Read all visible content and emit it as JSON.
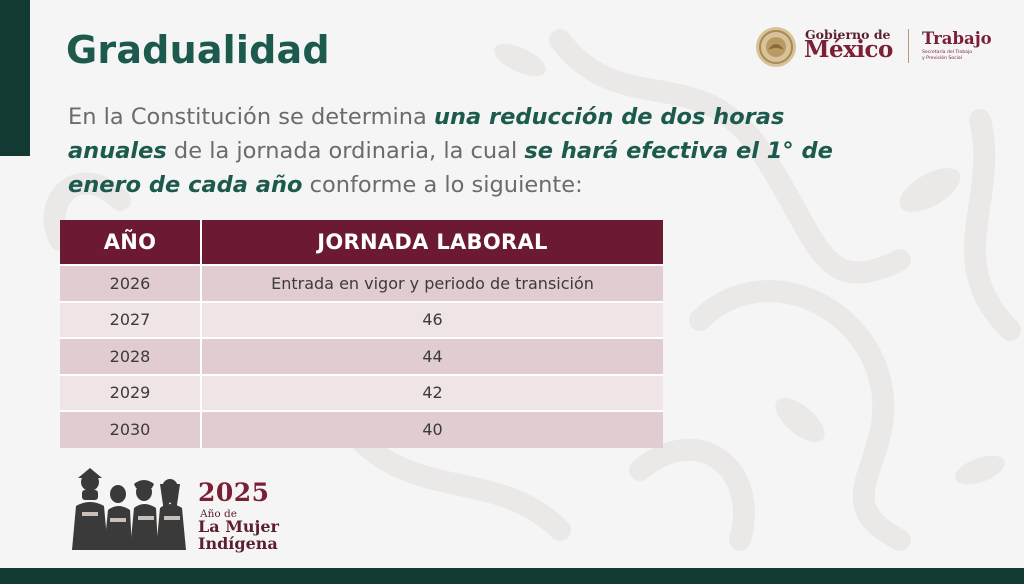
{
  "slide": {
    "title": "Gradualidad",
    "intro": {
      "p1": "En la Constitución se determina ",
      "h1": "una reducción de dos horas anuales",
      "p2": " de la jornada ordinaria, la cual ",
      "h2": "se hará efectiva el 1° de enero de cada año",
      "p3": " conforme a lo siguiente:"
    }
  },
  "header_logo": {
    "gobierno": "Gobierno de",
    "mexico": "México",
    "dependencia": "Trabajo",
    "dependencia_sub_1": "Secretaría del Trabajo",
    "dependencia_sub_2": "y Previsión Social"
  },
  "table": {
    "headers": [
      "AÑO",
      "JORNADA LABORAL"
    ],
    "rows": [
      [
        "2026",
        "Entrada en vigor y periodo de transición"
      ],
      [
        "2027",
        "46"
      ],
      [
        "2028",
        "44"
      ],
      [
        "2029",
        "42"
      ],
      [
        "2030",
        "40"
      ]
    ]
  },
  "footer_logo": {
    "year": "2025",
    "ano_de": "Año de",
    "la_mujer": "La Mujer",
    "indigena": "Indígena"
  },
  "colors": {
    "green_dark": "#123a33",
    "green_title": "#1d5a4e",
    "guinda": "#6b1a31",
    "row_odd": "#e1cdd1",
    "row_even": "#efe4e6"
  }
}
